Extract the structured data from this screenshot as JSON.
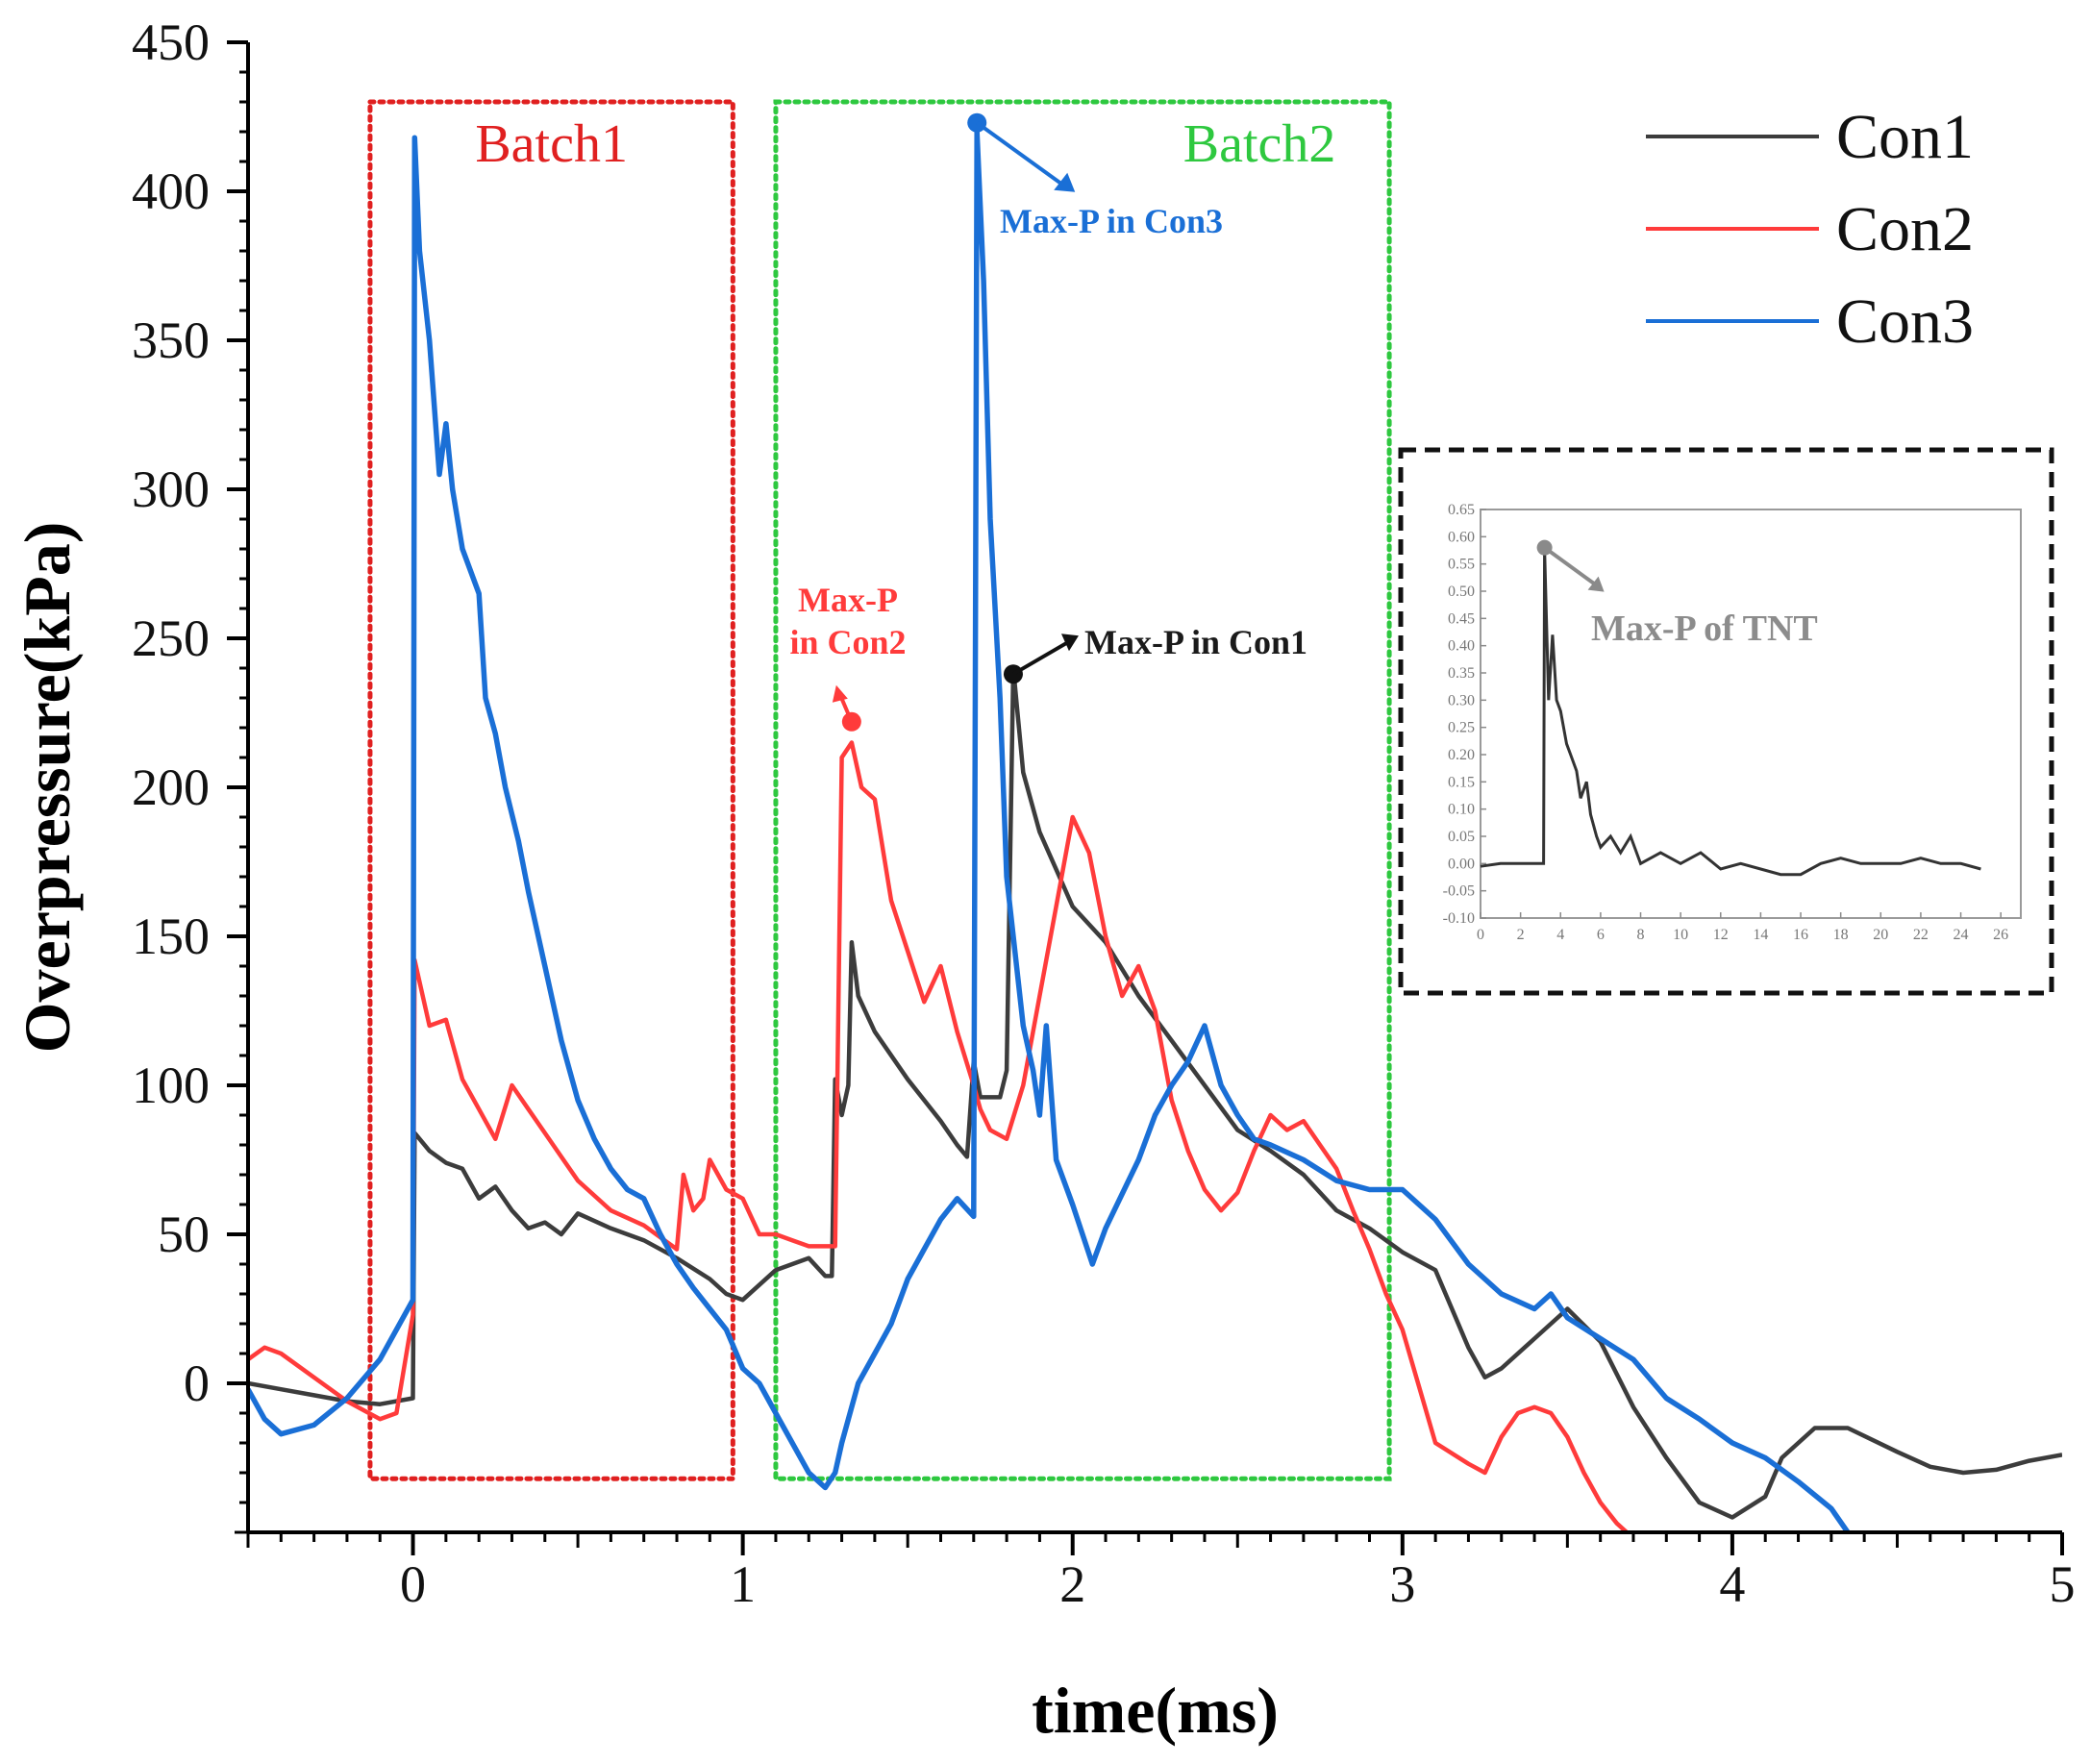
{
  "chart_data": {
    "type": "line",
    "title": "",
    "xlabel": "time(ms)",
    "ylabel": "Overpressure(kPa)",
    "xlim": [
      -0.5,
      5
    ],
    "ylim": [
      -50,
      450
    ],
    "xticks": [
      0,
      1,
      2,
      3,
      4,
      5
    ],
    "yticks": [
      0,
      50,
      100,
      150,
      200,
      250,
      300,
      350,
      400,
      450
    ],
    "x_minor_step": 0.1,
    "y_minor_step": 10,
    "legend_position": "top-right",
    "series": [
      {
        "name": "Con1",
        "color": "#3c3c3c",
        "points": [
          [
            -0.5,
            0
          ],
          [
            -0.4,
            -2
          ],
          [
            -0.3,
            -4
          ],
          [
            -0.2,
            -6
          ],
          [
            -0.1,
            -7
          ],
          [
            0,
            -5
          ],
          [
            0.005,
            84
          ],
          [
            0.05,
            78
          ],
          [
            0.1,
            74
          ],
          [
            0.15,
            72
          ],
          [
            0.2,
            62
          ],
          [
            0.25,
            66
          ],
          [
            0.3,
            58
          ],
          [
            0.35,
            52
          ],
          [
            0.4,
            54
          ],
          [
            0.45,
            50
          ],
          [
            0.5,
            57
          ],
          [
            0.6,
            52
          ],
          [
            0.7,
            48
          ],
          [
            0.8,
            42
          ],
          [
            0.9,
            35
          ],
          [
            0.95,
            30
          ],
          [
            1.0,
            28
          ],
          [
            1.1,
            38
          ],
          [
            1.2,
            42
          ],
          [
            1.25,
            36
          ],
          [
            1.27,
            36
          ],
          [
            1.28,
            102
          ],
          [
            1.3,
            90
          ],
          [
            1.32,
            100
          ],
          [
            1.33,
            148
          ],
          [
            1.35,
            130
          ],
          [
            1.4,
            118
          ],
          [
            1.5,
            102
          ],
          [
            1.6,
            88
          ],
          [
            1.65,
            80
          ],
          [
            1.68,
            76
          ],
          [
            1.7,
            108
          ],
          [
            1.72,
            96
          ],
          [
            1.78,
            96
          ],
          [
            1.8,
            105
          ],
          [
            1.82,
            240
          ],
          [
            1.85,
            205
          ],
          [
            1.9,
            185
          ],
          [
            2.0,
            160
          ],
          [
            2.1,
            148
          ],
          [
            2.2,
            130
          ],
          [
            2.3,
            115
          ],
          [
            2.4,
            100
          ],
          [
            2.5,
            85
          ],
          [
            2.6,
            78
          ],
          [
            2.7,
            70
          ],
          [
            2.8,
            58
          ],
          [
            2.9,
            52
          ],
          [
            3.0,
            44
          ],
          [
            3.1,
            38
          ],
          [
            3.2,
            12
          ],
          [
            3.25,
            2
          ],
          [
            3.3,
            5
          ],
          [
            3.4,
            15
          ],
          [
            3.5,
            25
          ],
          [
            3.6,
            14
          ],
          [
            3.7,
            -8
          ],
          [
            3.8,
            -25
          ],
          [
            3.9,
            -40
          ],
          [
            4.0,
            -45
          ],
          [
            4.1,
            -38
          ],
          [
            4.15,
            -25
          ],
          [
            4.25,
            -15
          ],
          [
            4.35,
            -15
          ],
          [
            4.5,
            -23
          ],
          [
            4.6,
            -28
          ],
          [
            4.7,
            -30
          ],
          [
            4.8,
            -29
          ],
          [
            4.9,
            -26
          ],
          [
            5.0,
            -24
          ]
        ]
      },
      {
        "name": "Con2",
        "color": "#ff3b3b",
        "points": [
          [
            -0.5,
            8
          ],
          [
            -0.45,
            12
          ],
          [
            -0.4,
            10
          ],
          [
            -0.3,
            2
          ],
          [
            -0.2,
            -6
          ],
          [
            -0.1,
            -12
          ],
          [
            -0.05,
            -10
          ],
          [
            0,
            23
          ],
          [
            0.005,
            142
          ],
          [
            0.05,
            120
          ],
          [
            0.1,
            122
          ],
          [
            0.15,
            102
          ],
          [
            0.2,
            92
          ],
          [
            0.25,
            82
          ],
          [
            0.3,
            100
          ],
          [
            0.35,
            92
          ],
          [
            0.4,
            84
          ],
          [
            0.45,
            76
          ],
          [
            0.5,
            68
          ],
          [
            0.6,
            58
          ],
          [
            0.7,
            53
          ],
          [
            0.8,
            45
          ],
          [
            0.82,
            70
          ],
          [
            0.85,
            58
          ],
          [
            0.88,
            62
          ],
          [
            0.9,
            75
          ],
          [
            0.95,
            65
          ],
          [
            1.0,
            62
          ],
          [
            1.05,
            50
          ],
          [
            1.1,
            50
          ],
          [
            1.15,
            48
          ],
          [
            1.2,
            46
          ],
          [
            1.25,
            46
          ],
          [
            1.28,
            46
          ],
          [
            1.3,
            210
          ],
          [
            1.33,
            215
          ],
          [
            1.36,
            200
          ],
          [
            1.4,
            196
          ],
          [
            1.45,
            162
          ],
          [
            1.5,
            145
          ],
          [
            1.55,
            128
          ],
          [
            1.6,
            140
          ],
          [
            1.65,
            118
          ],
          [
            1.7,
            100
          ],
          [
            1.72,
            92
          ],
          [
            1.75,
            85
          ],
          [
            1.8,
            82
          ],
          [
            1.85,
            100
          ],
          [
            1.9,
            130
          ],
          [
            1.95,
            160
          ],
          [
            2.0,
            190
          ],
          [
            2.05,
            178
          ],
          [
            2.1,
            150
          ],
          [
            2.15,
            130
          ],
          [
            2.2,
            140
          ],
          [
            2.25,
            125
          ],
          [
            2.3,
            95
          ],
          [
            2.35,
            78
          ],
          [
            2.4,
            65
          ],
          [
            2.45,
            58
          ],
          [
            2.5,
            64
          ],
          [
            2.55,
            78
          ],
          [
            2.6,
            90
          ],
          [
            2.65,
            85
          ],
          [
            2.7,
            88
          ],
          [
            2.75,
            80
          ],
          [
            2.8,
            72
          ],
          [
            2.85,
            58
          ],
          [
            2.9,
            45
          ],
          [
            2.95,
            30
          ],
          [
            3.0,
            18
          ],
          [
            3.1,
            -20
          ],
          [
            3.2,
            -27
          ],
          [
            3.25,
            -30
          ],
          [
            3.3,
            -18
          ],
          [
            3.35,
            -10
          ],
          [
            3.4,
            -8
          ],
          [
            3.45,
            -10
          ],
          [
            3.5,
            -18
          ],
          [
            3.55,
            -30
          ],
          [
            3.6,
            -40
          ],
          [
            3.65,
            -47
          ],
          [
            3.68,
            -50
          ]
        ]
      },
      {
        "name": "Con3",
        "color": "#1a6fd6",
        "points": [
          [
            -0.5,
            -2
          ],
          [
            -0.45,
            -12
          ],
          [
            -0.4,
            -17
          ],
          [
            -0.3,
            -14
          ],
          [
            -0.2,
            -5
          ],
          [
            -0.1,
            8
          ],
          [
            0,
            28
          ],
          [
            0.005,
            418
          ],
          [
            0.02,
            380
          ],
          [
            0.05,
            350
          ],
          [
            0.08,
            305
          ],
          [
            0.1,
            322
          ],
          [
            0.12,
            300
          ],
          [
            0.15,
            280
          ],
          [
            0.2,
            265
          ],
          [
            0.22,
            230
          ],
          [
            0.25,
            218
          ],
          [
            0.28,
            200
          ],
          [
            0.32,
            182
          ],
          [
            0.35,
            165
          ],
          [
            0.4,
            140
          ],
          [
            0.45,
            115
          ],
          [
            0.5,
            95
          ],
          [
            0.55,
            82
          ],
          [
            0.6,
            72
          ],
          [
            0.65,
            65
          ],
          [
            0.7,
            62
          ],
          [
            0.75,
            50
          ],
          [
            0.8,
            40
          ],
          [
            0.85,
            32
          ],
          [
            0.9,
            25
          ],
          [
            0.95,
            18
          ],
          [
            1.0,
            5
          ],
          [
            1.05,
            0
          ],
          [
            1.1,
            -10
          ],
          [
            1.15,
            -20
          ],
          [
            1.2,
            -30
          ],
          [
            1.25,
            -35
          ],
          [
            1.28,
            -30
          ],
          [
            1.3,
            -20
          ],
          [
            1.35,
            0
          ],
          [
            1.4,
            10
          ],
          [
            1.45,
            20
          ],
          [
            1.5,
            35
          ],
          [
            1.55,
            45
          ],
          [
            1.6,
            55
          ],
          [
            1.65,
            62
          ],
          [
            1.7,
            56
          ],
          [
            1.71,
            420
          ],
          [
            1.73,
            370
          ],
          [
            1.75,
            290
          ],
          [
            1.78,
            230
          ],
          [
            1.8,
            170
          ],
          [
            1.85,
            120
          ],
          [
            1.88,
            105
          ],
          [
            1.9,
            90
          ],
          [
            1.92,
            120
          ],
          [
            1.95,
            75
          ],
          [
            2.0,
            60
          ],
          [
            2.03,
            50
          ],
          [
            2.06,
            40
          ],
          [
            2.1,
            52
          ],
          [
            2.2,
            75
          ],
          [
            2.25,
            90
          ],
          [
            2.3,
            100
          ],
          [
            2.35,
            108
          ],
          [
            2.4,
            120
          ],
          [
            2.45,
            100
          ],
          [
            2.5,
            90
          ],
          [
            2.55,
            82
          ],
          [
            2.6,
            80
          ],
          [
            2.7,
            75
          ],
          [
            2.8,
            68
          ],
          [
            2.9,
            65
          ],
          [
            3.0,
            65
          ],
          [
            3.1,
            55
          ],
          [
            3.2,
            40
          ],
          [
            3.3,
            30
          ],
          [
            3.4,
            25
          ],
          [
            3.45,
            30
          ],
          [
            3.5,
            22
          ],
          [
            3.6,
            15
          ],
          [
            3.7,
            8
          ],
          [
            3.8,
            -5
          ],
          [
            3.9,
            -12
          ],
          [
            4.0,
            -20
          ],
          [
            4.1,
            -25
          ],
          [
            4.2,
            -33
          ],
          [
            4.3,
            -42
          ],
          [
            4.35,
            -50
          ]
        ]
      }
    ],
    "annotations": [
      {
        "label": "Batch1",
        "color": "#e02020",
        "x_range": [
          -0.13,
          0.97
        ],
        "y_range": [
          -32,
          430
        ]
      },
      {
        "label": "Batch2",
        "color": "#2ec83f",
        "x_range": [
          1.1,
          2.96
        ],
        "y_range": [
          -32,
          430
        ]
      },
      {
        "label": "Max-P in Con3",
        "color": "#1a6fd6",
        "x": 1.71,
        "y": 423
      },
      {
        "label": "Max-P in Con2",
        "color": "#ff3b3b",
        "x": 1.33,
        "y": 222
      },
      {
        "label": "Max-P in Con1",
        "color": "#1a1a1a",
        "x": 1.82,
        "y": 238
      }
    ],
    "inset": {
      "label": "Max-P of TNT",
      "xlim": [
        0,
        27
      ],
      "ylim": [
        -0.1,
        0.65
      ],
      "xticks": [
        0,
        2,
        4,
        6,
        8,
        10,
        12,
        14,
        16,
        18,
        20,
        22,
        24,
        26
      ],
      "yticks": [
        -0.1,
        -0.05,
        0.0,
        0.05,
        0.1,
        0.15,
        0.2,
        0.25,
        0.3,
        0.35,
        0.4,
        0.45,
        0.5,
        0.55,
        0.6,
        0.65
      ],
      "ytick_labels": [
        "-0.10",
        "-0.05",
        "0.00",
        "0.05",
        "0.10",
        "0.15",
        "0.20",
        "0.25",
        "0.30",
        "0.35",
        "0.40",
        "0.45",
        "0.50",
        "0.55",
        "0.60",
        "0.65"
      ],
      "color": "#333333",
      "max_point": [
        3.2,
        0.58
      ],
      "points": [
        [
          0,
          -0.005
        ],
        [
          1,
          0
        ],
        [
          2,
          0
        ],
        [
          3,
          0
        ],
        [
          3.15,
          0
        ],
        [
          3.2,
          0.58
        ],
        [
          3.4,
          0.3
        ],
        [
          3.6,
          0.42
        ],
        [
          3.8,
          0.3
        ],
        [
          4,
          0.28
        ],
        [
          4.3,
          0.22
        ],
        [
          4.5,
          0.2
        ],
        [
          4.8,
          0.17
        ],
        [
          5,
          0.12
        ],
        [
          5.3,
          0.15
        ],
        [
          5.5,
          0.09
        ],
        [
          5.8,
          0.05
        ],
        [
          6,
          0.03
        ],
        [
          6.5,
          0.05
        ],
        [
          7,
          0.02
        ],
        [
          7.5,
          0.05
        ],
        [
          8,
          0.0
        ],
        [
          9,
          0.02
        ],
        [
          10,
          0.0
        ],
        [
          11,
          0.02
        ],
        [
          12,
          -0.01
        ],
        [
          13,
          0.0
        ],
        [
          14,
          -0.01
        ],
        [
          15,
          -0.02
        ],
        [
          16,
          -0.02
        ],
        [
          17,
          0.0
        ],
        [
          18,
          0.01
        ],
        [
          19,
          0.0
        ],
        [
          20,
          0.0
        ],
        [
          21,
          0.0
        ],
        [
          22,
          0.01
        ],
        [
          23,
          0.0
        ],
        [
          24,
          0.0
        ],
        [
          25,
          -0.01
        ]
      ]
    }
  }
}
